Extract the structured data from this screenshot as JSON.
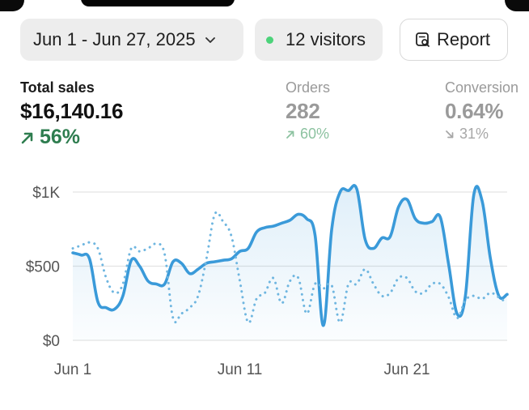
{
  "toolbar": {
    "date_range": "Jun 1 - Jun 27, 2025",
    "visitors_label": "12 visitors",
    "report_label": "Report",
    "live_dot_color": "#4cd37a",
    "icons": {
      "date": "chevron-down-icon",
      "report": "report-search-icon"
    }
  },
  "metrics": {
    "total_sales": {
      "label": "Total sales",
      "value": "$16,140.16",
      "change": "56%",
      "direction": "up"
    },
    "orders": {
      "label": "Orders",
      "value": "282",
      "change": "60%",
      "direction": "up"
    },
    "conversion": {
      "label": "Conversion",
      "value": "0.64%",
      "change": "31%",
      "direction": "down"
    }
  },
  "chart_data": {
    "type": "line",
    "title": "",
    "xlabel": "",
    "ylabel": "",
    "ylim": [
      0,
      1000
    ],
    "y_ticks": [
      "$0",
      "$500",
      "$1K"
    ],
    "y_tick_values": [
      0,
      500,
      1000
    ],
    "x_tick_labels": [
      "Jun 1",
      "Jun 11",
      "Jun 21"
    ],
    "x_tick_values": [
      1,
      11,
      21
    ],
    "x": [
      1,
      1.5,
      2,
      2.5,
      3,
      3.5,
      4,
      4.5,
      5,
      5.5,
      6,
      6.5,
      7,
      7.5,
      8,
      8.5,
      9,
      9.5,
      10,
      10.5,
      11,
      11.5,
      12,
      12.5,
      13,
      13.5,
      14,
      14.5,
      15,
      15.5,
      16,
      16.5,
      17,
      17.5,
      18,
      18.5,
      19,
      19.5,
      20,
      20.5,
      21,
      21.5,
      22,
      22.5,
      23,
      23.5,
      24,
      24.5,
      25,
      25.5,
      26,
      26.5,
      27
    ],
    "grid": true,
    "series": [
      {
        "name": "",
        "style": "solid",
        "color": "#3a9ad9",
        "values": [
          590,
          575,
          550,
          260,
          220,
          210,
          300,
          540,
          500,
          400,
          380,
          380,
          530,
          520,
          450,
          480,
          520,
          530,
          540,
          550,
          600,
          620,
          730,
          760,
          770,
          790,
          810,
          850,
          820,
          710,
          100,
          750,
          1000,
          1010,
          1020,
          680,
          620,
          690,
          700,
          900,
          950,
          820,
          790,
          800,
          830,
          510,
          180,
          300,
          980,
          940,
          550,
          300,
          310
        ]
      },
      {
        "name": "",
        "style": "dotted",
        "color": "#6fb6e0",
        "values": [
          620,
          640,
          660,
          620,
          420,
          320,
          380,
          620,
          600,
          620,
          650,
          580,
          150,
          180,
          220,
          300,
          550,
          850,
          800,
          700,
          400,
          120,
          280,
          320,
          420,
          250,
          400,
          420,
          180,
          380,
          350,
          370,
          120,
          380,
          380,
          480,
          380,
          300,
          320,
          420,
          420,
          330,
          320,
          380,
          380,
          290,
          150,
          270,
          300,
          280,
          320,
          290,
          250
        ]
      }
    ]
  }
}
